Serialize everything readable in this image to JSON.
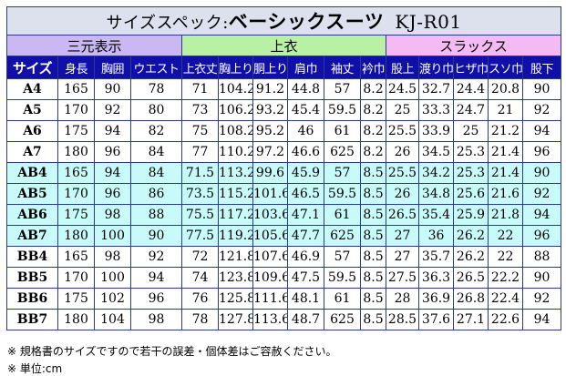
{
  "title": {
    "prefix": "サイズスペック:",
    "product": "ベーシックスーツ",
    "code": "KJ-R01"
  },
  "groups": {
    "sanshi": "三元表示",
    "ue": "上衣",
    "slacks": "スラックス"
  },
  "headers": [
    "サイズ",
    "身長",
    "胸囲",
    "ウエスト",
    "上衣丈",
    "胸上り",
    "胴上り",
    "肩巾",
    "袖丈",
    "衿巾",
    "股上",
    "渡り巾",
    "ヒザ巾",
    "スソ巾",
    "股下"
  ],
  "rows": [
    [
      "A4",
      "165",
      "90",
      "78",
      "71",
      "104.2",
      "91.2",
      "44.8",
      "57",
      "8.2",
      "24.5",
      "32.7",
      "24.4",
      "20.8",
      "90"
    ],
    [
      "A5",
      "170",
      "92",
      "80",
      "73",
      "106.2",
      "93.2",
      "45.4",
      "59.5",
      "8.2",
      "25",
      "33.3",
      "24.7",
      "21",
      "92"
    ],
    [
      "A6",
      "175",
      "94",
      "82",
      "75",
      "108.2",
      "95.2",
      "46",
      "61",
      "8.2",
      "25.5",
      "33.9",
      "25",
      "21.2",
      "94"
    ],
    [
      "A7",
      "180",
      "96",
      "84",
      "77",
      "110.2",
      "97.2",
      "46.6",
      "625",
      "8.2",
      "26",
      "34.5",
      "25.3",
      "21.4",
      "96"
    ],
    [
      "AB4",
      "165",
      "94",
      "84",
      "71.5",
      "113.2",
      "99.6",
      "45.9",
      "57",
      "8.5",
      "25.5",
      "34.2",
      "25.3",
      "21.4",
      "90"
    ],
    [
      "AB5",
      "170",
      "96",
      "86",
      "73.5",
      "115.2",
      "101.6",
      "46.5",
      "59.5",
      "8.5",
      "26",
      "34.8",
      "25.6",
      "21.6",
      "92"
    ],
    [
      "AB6",
      "175",
      "98",
      "88",
      "75.5",
      "117.2",
      "103.6",
      "47.1",
      "61",
      "8.5",
      "26.5",
      "35.4",
      "25.9",
      "21.8",
      "94"
    ],
    [
      "AB7",
      "180",
      "100",
      "90",
      "77.5",
      "119.2",
      "105.6",
      "47.7",
      "625",
      "8.5",
      "27",
      "36",
      "26.2",
      "22",
      "96"
    ],
    [
      "BB4",
      "165",
      "98",
      "92",
      "72",
      "121.8",
      "107.6",
      "46.9",
      "57",
      "8.5",
      "27",
      "35.7",
      "26.2",
      "22",
      "88"
    ],
    [
      "BB5",
      "170",
      "100",
      "94",
      "74",
      "123.8",
      "109.6",
      "47.5",
      "59.5",
      "8.5",
      "27.5",
      "36.3",
      "26.5",
      "22.2",
      "90"
    ],
    [
      "BB6",
      "175",
      "102",
      "96",
      "76",
      "125.8",
      "111.6",
      "48.1",
      "61",
      "8.5",
      "28",
      "36.9",
      "26.8",
      "22.4",
      "92"
    ],
    [
      "BB7",
      "180",
      "104",
      "98",
      "78",
      "127.8",
      "113.6",
      "48.7",
      "625",
      "8.5",
      "28.5",
      "37.6",
      "27.1",
      "22.6",
      "94"
    ]
  ],
  "highlight_rows": [
    "AB4",
    "AB5",
    "AB6",
    "AB7"
  ],
  "colors": {
    "header_bg": "#1010a8",
    "highlight_row": "#c8fafa",
    "sanshi_bg": "#c9b8f2",
    "ue_bg": "#b8f0a6",
    "slacks_bg": "#f4baf3"
  },
  "notes": [
    "※ 規格書のサイズですので若干の誤差・個体差はご容赦ください。",
    "※ 単位:cm"
  ]
}
